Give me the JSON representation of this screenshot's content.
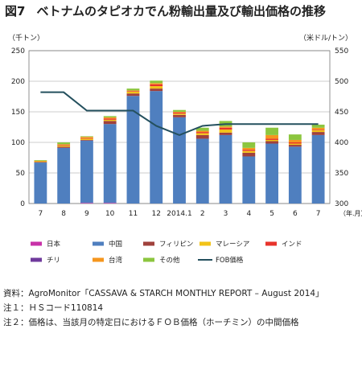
{
  "title": {
    "number": "図7",
    "text": "ベトナムのタピオカでん粉輸出量及び輸出価格の推移"
  },
  "left_unit": "（千トン）",
  "right_unit": "（米ドル/トン）",
  "x_unit": "（年.月）",
  "colors": {
    "日本": "#c832a8",
    "中国": "#4f7fbf",
    "フィリピン": "#a0413c",
    "マレーシア": "#f2c318",
    "インド": "#e8342c",
    "チリ": "#6f3a9c",
    "台湾": "#f5961e",
    "その他": "#8cc63f",
    "FOB価格": "#24505e"
  },
  "chart_data": {
    "type": "bar",
    "stacked": true,
    "categories": [
      "7",
      "8",
      "9",
      "10",
      "11",
      "12",
      "2014.1",
      "2",
      "3",
      "4",
      "5",
      "6",
      "7"
    ],
    "ylim": [
      0,
      250
    ],
    "yticks": [
      0,
      50,
      100,
      150,
      200,
      250
    ],
    "y2lim": [
      300,
      550
    ],
    "y2ticks": [
      300,
      350,
      400,
      450,
      500,
      550
    ],
    "series": [
      {
        "name": "日本",
        "values": [
          0,
          0,
          1,
          1,
          0,
          0,
          0,
          0,
          0,
          0,
          0,
          0,
          0
        ]
      },
      {
        "name": "中国",
        "values": [
          67,
          91,
          102,
          129,
          176,
          184,
          141,
          106,
          112,
          77,
          98,
          93,
          112
        ]
      },
      {
        "name": "フィリピン",
        "values": [
          1,
          2,
          1,
          5,
          4,
          4,
          4,
          6,
          4,
          6,
          4,
          3,
          5
        ]
      },
      {
        "name": "マレーシア",
        "values": [
          1,
          2,
          2,
          2,
          3,
          4,
          2,
          3,
          5,
          3,
          2,
          2,
          3
        ]
      },
      {
        "name": "インド",
        "values": [
          0,
          1,
          1,
          2,
          1,
          3,
          2,
          2,
          3,
          2,
          2,
          2,
          1
        ]
      },
      {
        "name": "チリ",
        "values": [
          0,
          0,
          0,
          0,
          0,
          0,
          0,
          0,
          0,
          0,
          0,
          0,
          0
        ]
      },
      {
        "name": "台湾",
        "values": [
          1,
          1,
          2,
          2,
          1,
          2,
          1,
          2,
          2,
          3,
          6,
          4,
          3
        ]
      },
      {
        "name": "その他",
        "values": [
          1,
          3,
          1,
          2,
          3,
          4,
          3,
          5,
          9,
          9,
          12,
          9,
          5
        ]
      }
    ],
    "line": {
      "name": "FOB価格",
      "axis": "right",
      "values": [
        482,
        482,
        452,
        452,
        452,
        427,
        412,
        427,
        430,
        430,
        430,
        430,
        430
      ]
    }
  },
  "legend": [
    "日本",
    "中国",
    "フィリピン",
    "マレーシア",
    "インド",
    "チリ",
    "台湾",
    "その他",
    "FOB価格"
  ],
  "notes": [
    {
      "label": "資料：",
      "text": "AgroMonitor「CASSAVA & STARCH MONTHLY REPORT – August 2014」"
    },
    {
      "label": "注１：",
      "text": "ＨＳコード110814"
    },
    {
      "label": "注２：",
      "text": "価格は、当該月の特定日におけるＦＯＢ価格（ホーチミン）の中間価格"
    }
  ]
}
